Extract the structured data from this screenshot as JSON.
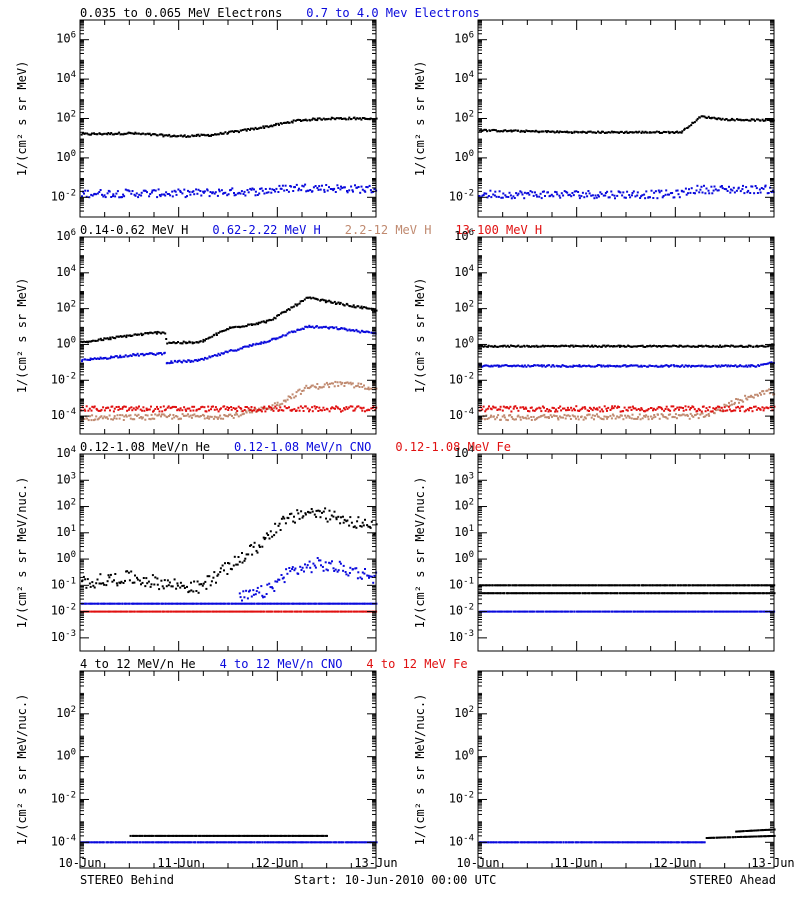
{
  "colors": {
    "black": "#000000",
    "blue": "#0a0adc",
    "brown": "#c08a70",
    "red": "#e01010"
  },
  "x_ticks": [
    "10-Jun",
    "11-Jun",
    "12-Jun",
    "13-Jun"
  ],
  "footer": {
    "left": "STEREO Behind",
    "center": "Start: 10-Jun-2010 00:00 UTC",
    "right": "STEREO Ahead"
  },
  "chart_data": [
    {
      "type": "scatter",
      "row": 1,
      "legend": [
        {
          "text": "0.035 to 0.065 MeV Electrons",
          "color": "#000000"
        },
        {
          "text": "0.7 to 4.0 Mev Electrons",
          "color": "#0a0adc"
        }
      ],
      "ylabel": "1/(cm² s sr MeV)",
      "y_log_range": [
        -3,
        7
      ],
      "y_ticks": [
        -2,
        0,
        2,
        4,
        6
      ],
      "x_range_days": [
        0,
        3
      ],
      "panels": [
        {
          "side": "STEREO Behind",
          "series": [
            {
              "color": "#000000",
              "spread": 0.05,
              "points": [
                [
                  0,
                  1.2
                ],
                [
                  0.5,
                  1.25
                ],
                [
                  0.8,
                  1.15
                ],
                [
                  1.0,
                  1.1
                ],
                [
                  1.3,
                  1.15
                ],
                [
                  1.6,
                  1.35
                ],
                [
                  1.9,
                  1.6
                ],
                [
                  2.0,
                  1.7
                ],
                [
                  2.2,
                  1.9
                ],
                [
                  2.5,
                  2.0
                ],
                [
                  2.8,
                  2.0
                ],
                [
                  3.0,
                  1.95
                ]
              ]
            },
            {
              "color": "#0a0adc",
              "spread": 0.2,
              "points": [
                [
                  0,
                  -1.8
                ],
                [
                  1.0,
                  -1.8
                ],
                [
                  1.8,
                  -1.7
                ],
                [
                  2.2,
                  -1.5
                ],
                [
                  2.6,
                  -1.55
                ],
                [
                  3.0,
                  -1.6
                ]
              ]
            }
          ]
        },
        {
          "side": "STEREO Ahead",
          "series": [
            {
              "color": "#000000",
              "spread": 0.04,
              "points": [
                [
                  0,
                  1.4
                ],
                [
                  1.0,
                  1.3
                ],
                [
                  2.05,
                  1.3
                ],
                [
                  2.25,
                  2.1
                ],
                [
                  2.5,
                  1.95
                ],
                [
                  3.0,
                  1.9
                ]
              ]
            },
            {
              "color": "#0a0adc",
              "spread": 0.2,
              "points": [
                [
                  0,
                  -1.85
                ],
                [
                  2.0,
                  -1.85
                ],
                [
                  2.2,
                  -1.6
                ],
                [
                  3.0,
                  -1.6
                ]
              ]
            }
          ]
        }
      ]
    },
    {
      "type": "scatter",
      "row": 2,
      "legend": [
        {
          "text": "0.14-0.62 MeV H",
          "color": "#000000"
        },
        {
          "text": "0.62-2.22 MeV H",
          "color": "#0a0adc"
        },
        {
          "text": "2.2-12 MeV H",
          "color": "#c08a70"
        },
        {
          "text": "13-100 MeV H",
          "color": "#e01010"
        }
      ],
      "ylabel": "1/(cm² s sr MeV)",
      "y_log_range": [
        -5,
        6
      ],
      "y_ticks": [
        -4,
        -2,
        0,
        2,
        4,
        6
      ],
      "x_range_days": [
        0,
        3
      ],
      "panels": [
        {
          "side": "STEREO Behind",
          "series": [
            {
              "color": "#000000",
              "spread": 0.06,
              "points": [
                [
                  0,
                  0.1
                ],
                [
                  0.5,
                  0.5
                ],
                [
                  0.85,
                  0.7
                ],
                [
                  0.87,
                  0.1
                ],
                [
                  1.2,
                  0.1
                ],
                [
                  1.5,
                  0.9
                ],
                [
                  1.9,
                  1.3
                ],
                [
                  2.0,
                  1.6
                ],
                [
                  2.3,
                  2.6
                ],
                [
                  2.6,
                  2.3
                ],
                [
                  3.0,
                  1.9
                ]
              ]
            },
            {
              "color": "#0a0adc",
              "spread": 0.06,
              "points": [
                [
                  0,
                  -0.9
                ],
                [
                  0.5,
                  -0.6
                ],
                [
                  0.85,
                  -0.5
                ],
                [
                  0.87,
                  -1.0
                ],
                [
                  1.2,
                  -0.9
                ],
                [
                  1.5,
                  -0.4
                ],
                [
                  1.9,
                  0.2
                ],
                [
                  2.0,
                  0.4
                ],
                [
                  2.3,
                  1.0
                ],
                [
                  2.6,
                  0.9
                ],
                [
                  3.0,
                  0.6
                ]
              ]
            },
            {
              "color": "#c08a70",
              "spread": 0.15,
              "points": [
                [
                  0,
                  -4.1
                ],
                [
                  1.5,
                  -4.0
                ],
                [
                  1.9,
                  -3.6
                ],
                [
                  2.1,
                  -3.0
                ],
                [
                  2.3,
                  -2.4
                ],
                [
                  2.6,
                  -2.2
                ],
                [
                  3.0,
                  -2.4
                ]
              ]
            },
            {
              "color": "#e01010",
              "spread": 0.15,
              "points": [
                [
                  0,
                  -3.6
                ],
                [
                  3.0,
                  -3.6
                ]
              ]
            }
          ]
        },
        {
          "side": "STEREO Ahead",
          "series": [
            {
              "color": "#000000",
              "spread": 0.04,
              "points": [
                [
                  0,
                  -0.1
                ],
                [
                  2.9,
                  -0.1
                ],
                [
                  3.0,
                  0.0
                ]
              ]
            },
            {
              "color": "#0a0adc",
              "spread": 0.05,
              "points": [
                [
                  0,
                  -1.2
                ],
                [
                  2.8,
                  -1.2
                ],
                [
                  3.0,
                  -1.0
                ]
              ]
            },
            {
              "color": "#c08a70",
              "spread": 0.15,
              "points": [
                [
                  0,
                  -4.1
                ],
                [
                  2.3,
                  -4.0
                ],
                [
                  2.6,
                  -3.2
                ],
                [
                  2.9,
                  -2.6
                ],
                [
                  3.0,
                  -2.7
                ]
              ]
            },
            {
              "color": "#e01010",
              "spread": 0.15,
              "points": [
                [
                  0,
                  -3.6
                ],
                [
                  3.0,
                  -3.6
                ]
              ]
            }
          ]
        }
      ]
    },
    {
      "type": "scatter",
      "row": 3,
      "legend": [
        {
          "text": "0.12-1.08 MeV/n He",
          "color": "#000000"
        },
        {
          "text": "0.12-1.08 MeV/n CNO",
          "color": "#0a0adc"
        },
        {
          "text": "0.12-1.08 MeV Fe",
          "color": "#e01010"
        }
      ],
      "ylabel": "1/(cm² s sr MeV/nuc.)",
      "y_log_range": [
        -3.5,
        4
      ],
      "y_ticks": [
        -3,
        -2,
        -1,
        0,
        1,
        2,
        3,
        4
      ],
      "x_range_days": [
        0,
        3
      ],
      "panels": [
        {
          "side": "STEREO Behind",
          "series": [
            {
              "color": "#000000",
              "spread": 0.25,
              "points": [
                [
                  0,
                  -0.9
                ],
                [
                  0.5,
                  -0.7
                ],
                [
                  0.8,
                  -0.9
                ],
                [
                  1.2,
                  -1.1
                ],
                [
                  1.5,
                  -0.3
                ],
                [
                  1.8,
                  0.5
                ],
                [
                  2.0,
                  1.3
                ],
                [
                  2.3,
                  1.8
                ],
                [
                  2.6,
                  1.6
                ],
                [
                  2.8,
                  1.4
                ],
                [
                  3.0,
                  1.1
                ]
              ]
            },
            {
              "color": "#0a0adc",
              "spread": 0.25,
              "points": [
                [
                  1.6,
                  -1.5
                ],
                [
                  1.9,
                  -1.2
                ],
                [
                  2.1,
                  -0.5
                ],
                [
                  2.4,
                  -0.2
                ],
                [
                  2.7,
                  -0.4
                ],
                [
                  3.0,
                  -0.7
                ]
              ]
            },
            {
              "color": "#0a0adc",
              "spread": 0.0,
              "points": [
                [
                  0,
                  -1.7
                ],
                [
                  3.0,
                  -1.7
                ]
              ]
            },
            {
              "color": "#e01010",
              "spread": 0.0,
              "points": [
                [
                  0,
                  -2.0
                ],
                [
                  3.0,
                  -2.0
                ]
              ]
            }
          ]
        },
        {
          "side": "STEREO Ahead",
          "series": [
            {
              "color": "#000000",
              "spread": 0.0,
              "points": [
                [
                  0,
                  -1.3
                ],
                [
                  3.0,
                  -1.3
                ]
              ]
            },
            {
              "color": "#000000",
              "spread": 0.0,
              "points": [
                [
                  0,
                  -1.0
                ],
                [
                  3.0,
                  -1.0
                ]
              ]
            },
            {
              "color": "#0a0adc",
              "spread": 0.0,
              "points": [
                [
                  0,
                  -2.0
                ],
                [
                  3.0,
                  -2.0
                ]
              ]
            }
          ]
        }
      ]
    },
    {
      "type": "scatter",
      "row": 4,
      "legend": [
        {
          "text": "4 to 12 MeV/n He",
          "color": "#000000"
        },
        {
          "text": "4 to 12 MeV/n CNO",
          "color": "#0a0adc"
        },
        {
          "text": "4 to 12 MeV Fe",
          "color": "#e01010"
        }
      ],
      "ylabel": "1/(cm² s sr MeV/nuc.)",
      "y_log_range": [
        -5.2,
        4
      ],
      "y_ticks": [
        -4,
        -2,
        0,
        2
      ],
      "x_range_days": [
        0,
        3
      ],
      "panels": [
        {
          "side": "STEREO Behind",
          "series": [
            {
              "color": "#0a0adc",
              "spread": 0.0,
              "points": [
                [
                  0,
                  -4.0
                ],
                [
                  3.0,
                  -4.0
                ]
              ]
            },
            {
              "color": "#000000",
              "spread": 0.0,
              "points": [
                [
                  0.5,
                  -3.7
                ],
                [
                  1.5,
                  -3.7
                ],
                [
                  2.5,
                  -3.7
                ]
              ]
            }
          ]
        },
        {
          "side": "STEREO Ahead",
          "series": [
            {
              "color": "#0a0adc",
              "spread": 0.0,
              "points": [
                [
                  0,
                  -4.0
                ],
                [
                  2.3,
                  -4.0
                ]
              ]
            },
            {
              "color": "#000000",
              "spread": 0.0,
              "points": [
                [
                  2.3,
                  -3.8
                ],
                [
                  3.0,
                  -3.7
                ]
              ]
            },
            {
              "color": "#000000",
              "spread": 0.0,
              "points": [
                [
                  2.6,
                  -3.5
                ],
                [
                  3.0,
                  -3.4
                ]
              ]
            }
          ]
        }
      ]
    }
  ]
}
